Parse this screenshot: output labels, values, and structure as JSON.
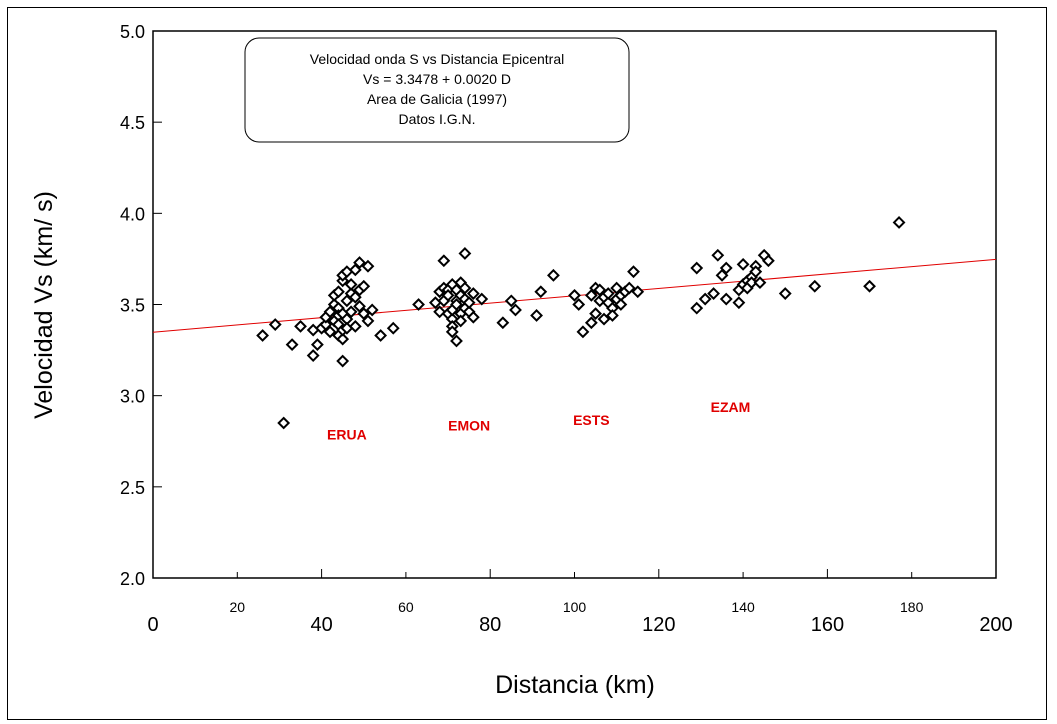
{
  "chart_data": {
    "type": "scatter",
    "title_lines": [
      "Velocidad onda S vs Distancia Epicentral",
      "Vs = 3.3478 + 0.0020 D",
      "Area de Galicia (1997)",
      "Datos I.G.N."
    ],
    "xlabel": "Distancia (km)",
    "ylabel": "Velocidad Vs (km/ s)",
    "xlim": [
      0,
      200
    ],
    "ylim": [
      2.0,
      5.0
    ],
    "x_ticks_major": [
      {
        "value": 0,
        "label": "0"
      },
      {
        "value": 40,
        "label": "40"
      },
      {
        "value": 80,
        "label": "80"
      },
      {
        "value": 120,
        "label": "120"
      },
      {
        "value": 160,
        "label": "160"
      },
      {
        "value": 200,
        "label": "200"
      }
    ],
    "x_ticks_minor": [
      {
        "value": 20,
        "label": "20"
      },
      {
        "value": 60,
        "label": "60"
      },
      {
        "value": 100,
        "label": "100"
      },
      {
        "value": 140,
        "label": "140"
      },
      {
        "value": 180,
        "label": "180"
      }
    ],
    "y_ticks": [
      {
        "value": 2.0,
        "label": "2.0"
      },
      {
        "value": 2.5,
        "label": "2.5"
      },
      {
        "value": 3.0,
        "label": "3.0"
      },
      {
        "value": 3.5,
        "label": "3.5"
      },
      {
        "value": 4.0,
        "label": "4.0"
      },
      {
        "value": 4.5,
        "label": "4.5"
      },
      {
        "value": 5.0,
        "label": "5.0"
      }
    ],
    "fit_line": {
      "intercept": 3.3478,
      "slope": 0.002,
      "x_range": [
        0,
        200
      ],
      "color": "#e00000"
    },
    "station_labels": [
      {
        "text": "ERUA",
        "x": 46,
        "y": 2.76
      },
      {
        "text": "EMON",
        "x": 75,
        "y": 2.81
      },
      {
        "text": "ESTS",
        "x": 104,
        "y": 2.84
      },
      {
        "text": "EZAM",
        "x": 137,
        "y": 2.91
      }
    ],
    "marker_color": "#000000",
    "label_color": "#e00000",
    "points": [
      [
        26,
        3.33
      ],
      [
        29,
        3.39
      ],
      [
        31,
        2.85
      ],
      [
        33,
        3.28
      ],
      [
        35,
        3.38
      ],
      [
        38,
        3.36
      ],
      [
        38,
        3.22
      ],
      [
        39,
        3.28
      ],
      [
        40,
        3.37
      ],
      [
        41,
        3.39
      ],
      [
        41,
        3.43
      ],
      [
        42,
        3.46
      ],
      [
        42,
        3.35
      ],
      [
        43,
        3.41
      ],
      [
        43,
        3.5
      ],
      [
        43,
        3.55
      ],
      [
        44,
        3.57
      ],
      [
        44,
        3.48
      ],
      [
        44,
        3.44
      ],
      [
        44,
        3.39
      ],
      [
        44,
        3.33
      ],
      [
        45,
        3.31
      ],
      [
        45,
        3.19
      ],
      [
        45,
        3.36
      ],
      [
        45,
        3.45
      ],
      [
        45,
        3.63
      ],
      [
        45,
        3.66
      ],
      [
        46,
        3.68
      ],
      [
        46,
        3.52
      ],
      [
        46,
        3.42
      ],
      [
        46,
        3.37
      ],
      [
        47,
        3.46
      ],
      [
        47,
        3.56
      ],
      [
        47,
        3.61
      ],
      [
        48,
        3.69
      ],
      [
        48,
        3.54
      ],
      [
        48,
        3.38
      ],
      [
        49,
        3.58
      ],
      [
        49,
        3.49
      ],
      [
        49,
        3.73
      ],
      [
        50,
        3.6
      ],
      [
        50,
        3.45
      ],
      [
        51,
        3.41
      ],
      [
        51,
        3.71
      ],
      [
        52,
        3.47
      ],
      [
        54,
        3.33
      ],
      [
        57,
        3.37
      ],
      [
        63,
        3.5
      ],
      [
        67,
        3.51
      ],
      [
        68,
        3.57
      ],
      [
        68,
        3.46
      ],
      [
        69,
        3.59
      ],
      [
        69,
        3.74
      ],
      [
        69,
        3.52
      ],
      [
        70,
        3.45
      ],
      [
        70,
        3.58
      ],
      [
        70,
        3.55
      ],
      [
        71,
        3.42
      ],
      [
        71,
        3.47
      ],
      [
        71,
        3.61
      ],
      [
        71,
        3.38
      ],
      [
        71,
        3.35
      ],
      [
        72,
        3.3
      ],
      [
        72,
        3.52
      ],
      [
        72,
        3.58
      ],
      [
        72,
        3.5
      ],
      [
        73,
        3.45
      ],
      [
        73,
        3.55
      ],
      [
        73,
        3.62
      ],
      [
        73,
        3.41
      ],
      [
        74,
        3.48
      ],
      [
        74,
        3.53
      ],
      [
        74,
        3.59
      ],
      [
        74,
        3.78
      ],
      [
        75,
        3.46
      ],
      [
        75,
        3.51
      ],
      [
        76,
        3.56
      ],
      [
        76,
        3.43
      ],
      [
        78,
        3.53
      ],
      [
        83,
        3.4
      ],
      [
        85,
        3.52
      ],
      [
        86,
        3.47
      ],
      [
        91,
        3.44
      ],
      [
        92,
        3.57
      ],
      [
        95,
        3.66
      ],
      [
        100,
        3.55
      ],
      [
        101,
        3.5
      ],
      [
        102,
        3.35
      ],
      [
        104,
        3.4
      ],
      [
        104,
        3.55
      ],
      [
        105,
        3.59
      ],
      [
        105,
        3.45
      ],
      [
        106,
        3.52
      ],
      [
        106,
        3.58
      ],
      [
        107,
        3.42
      ],
      [
        107,
        3.54
      ],
      [
        108,
        3.51
      ],
      [
        108,
        3.56
      ],
      [
        109,
        3.48
      ],
      [
        109,
        3.44
      ],
      [
        110,
        3.59
      ],
      [
        110,
        3.53
      ],
      [
        111,
        3.55
      ],
      [
        111,
        3.5
      ],
      [
        112,
        3.57
      ],
      [
        113,
        3.59
      ],
      [
        114,
        3.68
      ],
      [
        115,
        3.57
      ],
      [
        129,
        3.7
      ],
      [
        129,
        3.48
      ],
      [
        131,
        3.53
      ],
      [
        133,
        3.56
      ],
      [
        134,
        3.77
      ],
      [
        135,
        3.66
      ],
      [
        136,
        3.7
      ],
      [
        136,
        3.53
      ],
      [
        139,
        3.51
      ],
      [
        139,
        3.58
      ],
      [
        140,
        3.61
      ],
      [
        140,
        3.72
      ],
      [
        141,
        3.63
      ],
      [
        141,
        3.59
      ],
      [
        142,
        3.65
      ],
      [
        142,
        3.62
      ],
      [
        143,
        3.71
      ],
      [
        143,
        3.68
      ],
      [
        144,
        3.62
      ],
      [
        145,
        3.77
      ],
      [
        146,
        3.74
      ],
      [
        150,
        3.56
      ],
      [
        157,
        3.6
      ],
      [
        170,
        3.6
      ],
      [
        177,
        3.95
      ]
    ]
  }
}
